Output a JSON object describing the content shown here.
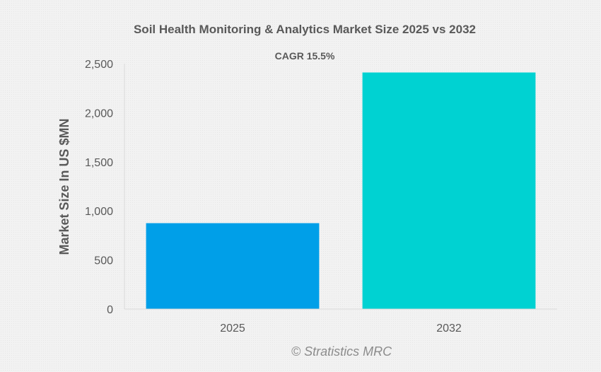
{
  "chart_data": {
    "type": "bar",
    "title": "Soil Health Monitoring & Analytics Market Size 2025 vs 2032",
    "annotation": "CAGR 15.5%",
    "ylabel": "Market Size In US $MN",
    "xlabel": "",
    "categories": [
      "2025",
      "2032"
    ],
    "values": [
      875,
      2410
    ],
    "ylim": [
      0,
      2500
    ],
    "yticks": [
      0,
      500,
      1000,
      1500,
      2000,
      2500
    ],
    "ytick_labels": [
      "0",
      "500",
      "1,000",
      "1,500",
      "2,000",
      "2,500"
    ],
    "colors": [
      "#009fe8",
      "#00d2d2"
    ],
    "grid": false,
    "legend": "none"
  },
  "credit": "© Stratistics MRC"
}
